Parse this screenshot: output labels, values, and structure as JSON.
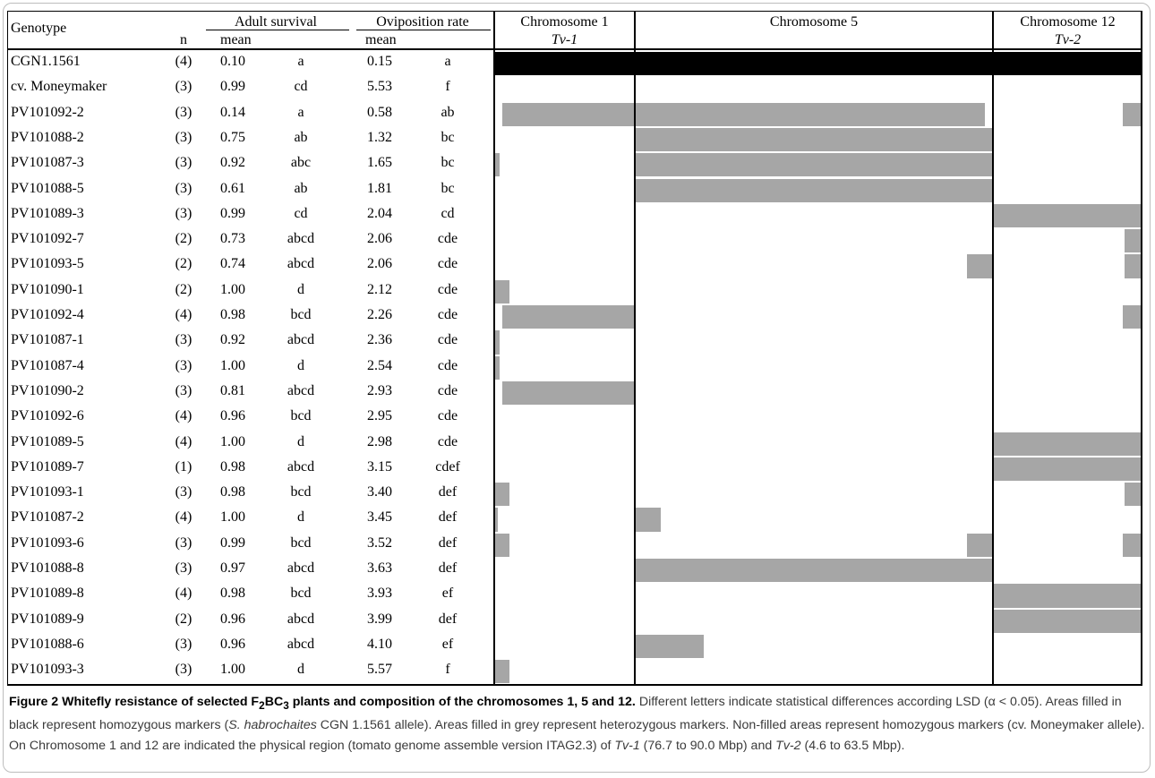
{
  "table": {
    "headers": {
      "genotype": "Genotype",
      "n": "n",
      "adult_survival": "Adult survival",
      "oviposition_rate": "Oviposition rate",
      "mean": "mean",
      "chromosomes": [
        {
          "name": "Chromosome 1",
          "region": "Tv-1"
        },
        {
          "name": "Chromosome 5",
          "region": ""
        },
        {
          "name": "Chromosome 12",
          "region": "Tv-2"
        }
      ]
    },
    "rows": [
      {
        "genotype": "CGN1.1561",
        "n": "(4)",
        "surv": "0.10",
        "surv_g": "a",
        "ovi": "0.15",
        "ovi_g": "a"
      },
      {
        "genotype": "cv. Moneymaker",
        "n": "(3)",
        "surv": "0.99",
        "surv_g": "cd",
        "ovi": "5.53",
        "ovi_g": "f"
      },
      {
        "genotype": "PV101092-2",
        "n": "(3)",
        "surv": "0.14",
        "surv_g": "a",
        "ovi": "0.58",
        "ovi_g": "ab"
      },
      {
        "genotype": "PV101088-2",
        "n": "(3)",
        "surv": "0.75",
        "surv_g": "ab",
        "ovi": "1.32",
        "ovi_g": "bc"
      },
      {
        "genotype": "PV101087-3",
        "n": "(3)",
        "surv": "0.92",
        "surv_g": "abc",
        "ovi": "1.65",
        "ovi_g": "bc"
      },
      {
        "genotype": "PV101088-5",
        "n": "(3)",
        "surv": "0.61",
        "surv_g": "ab",
        "ovi": "1.81",
        "ovi_g": "bc"
      },
      {
        "genotype": "PV101089-3",
        "n": "(3)",
        "surv": "0.99",
        "surv_g": "cd",
        "ovi": "2.04",
        "ovi_g": "cd"
      },
      {
        "genotype": "PV101092-7",
        "n": "(2)",
        "surv": "0.73",
        "surv_g": "abcd",
        "ovi": "2.06",
        "ovi_g": "cde"
      },
      {
        "genotype": "PV101093-5",
        "n": "(2)",
        "surv": "0.74",
        "surv_g": "abcd",
        "ovi": "2.06",
        "ovi_g": "cde"
      },
      {
        "genotype": "PV101090-1",
        "n": "(2)",
        "surv": "1.00",
        "surv_g": "d",
        "ovi": "2.12",
        "ovi_g": "cde"
      },
      {
        "genotype": "PV101092-4",
        "n": "(4)",
        "surv": "0.98",
        "surv_g": "bcd",
        "ovi": "2.26",
        "ovi_g": "cde"
      },
      {
        "genotype": "PV101087-1",
        "n": "(3)",
        "surv": "0.92",
        "surv_g": "abcd",
        "ovi": "2.36",
        "ovi_g": "cde"
      },
      {
        "genotype": "PV101087-4",
        "n": "(3)",
        "surv": "1.00",
        "surv_g": "d",
        "ovi": "2.54",
        "ovi_g": "cde"
      },
      {
        "genotype": "PV101090-2",
        "n": "(3)",
        "surv": "0.81",
        "surv_g": "abcd",
        "ovi": "2.93",
        "ovi_g": "cde"
      },
      {
        "genotype": "PV101092-6",
        "n": "(4)",
        "surv": "0.96",
        "surv_g": "bcd",
        "ovi": "2.95",
        "ovi_g": "cde"
      },
      {
        "genotype": "PV101089-5",
        "n": "(4)",
        "surv": "1.00",
        "surv_g": "d",
        "ovi": "2.98",
        "ovi_g": "cde"
      },
      {
        "genotype": "PV101089-7",
        "n": "(1)",
        "surv": "0.98",
        "surv_g": "abcd",
        "ovi": "3.15",
        "ovi_g": "cdef"
      },
      {
        "genotype": "PV101093-1",
        "n": "(3)",
        "surv": "0.98",
        "surv_g": "bcd",
        "ovi": "3.40",
        "ovi_g": "def"
      },
      {
        "genotype": "PV101087-2",
        "n": "(4)",
        "surv": "1.00",
        "surv_g": "d",
        "ovi": "3.45",
        "ovi_g": "def"
      },
      {
        "genotype": "PV101093-6",
        "n": "(3)",
        "surv": "0.99",
        "surv_g": "bcd",
        "ovi": "3.52",
        "ovi_g": "def"
      },
      {
        "genotype": "PV101088-8",
        "n": "(3)",
        "surv": "0.97",
        "surv_g": "abcd",
        "ovi": "3.63",
        "ovi_g": "def"
      },
      {
        "genotype": "PV101089-8",
        "n": "(4)",
        "surv": "0.98",
        "surv_g": "bcd",
        "ovi": "3.93",
        "ovi_g": "ef"
      },
      {
        "genotype": "PV101089-9",
        "n": "(2)",
        "surv": "0.96",
        "surv_g": "abcd",
        "ovi": "3.99",
        "ovi_g": "def"
      },
      {
        "genotype": "PV101088-6",
        "n": "(3)",
        "surv": "0.96",
        "surv_g": "abcd",
        "ovi": "4.10",
        "ovi_g": "ef"
      },
      {
        "genotype": "PV101093-3",
        "n": "(3)",
        "surv": "1.00",
        "surv_g": "d",
        "ovi": "5.57",
        "ovi_g": "f"
      }
    ]
  },
  "genotype_map": {
    "colors": {
      "homozygous_donor": "#000000",
      "heterozygous": "#a6a6a6"
    },
    "fills": [
      {
        "row": 0,
        "chrom": 0,
        "start": 0,
        "end": 1,
        "state": "homozygous_donor"
      },
      {
        "row": 0,
        "chrom": 1,
        "start": 0,
        "end": 1,
        "state": "homozygous_donor"
      },
      {
        "row": 0,
        "chrom": 2,
        "start": 0,
        "end": 1,
        "state": "homozygous_donor"
      },
      {
        "row": 2,
        "chrom": 0,
        "start": 0.05,
        "end": 1,
        "state": "heterozygous"
      },
      {
        "row": 2,
        "chrom": 1,
        "start": 0,
        "end": 0.98,
        "state": "heterozygous"
      },
      {
        "row": 2,
        "chrom": 2,
        "start": 0.88,
        "end": 1,
        "state": "heterozygous"
      },
      {
        "row": 3,
        "chrom": 1,
        "start": 0,
        "end": 1,
        "state": "heterozygous"
      },
      {
        "row": 4,
        "chrom": 0,
        "start": 0,
        "end": 0.03,
        "state": "heterozygous"
      },
      {
        "row": 4,
        "chrom": 1,
        "start": 0,
        "end": 1,
        "state": "heterozygous"
      },
      {
        "row": 5,
        "chrom": 1,
        "start": 0,
        "end": 1,
        "state": "heterozygous"
      },
      {
        "row": 6,
        "chrom": 2,
        "start": 0,
        "end": 1,
        "state": "heterozygous"
      },
      {
        "row": 7,
        "chrom": 2,
        "start": 0.89,
        "end": 1,
        "state": "heterozygous"
      },
      {
        "row": 8,
        "chrom": 1,
        "start": 0.93,
        "end": 1,
        "state": "heterozygous"
      },
      {
        "row": 8,
        "chrom": 2,
        "start": 0.89,
        "end": 1,
        "state": "heterozygous"
      },
      {
        "row": 9,
        "chrom": 0,
        "start": 0,
        "end": 0.1,
        "state": "heterozygous"
      },
      {
        "row": 10,
        "chrom": 0,
        "start": 0.05,
        "end": 1,
        "state": "heterozygous"
      },
      {
        "row": 10,
        "chrom": 2,
        "start": 0.88,
        "end": 1,
        "state": "heterozygous"
      },
      {
        "row": 11,
        "chrom": 0,
        "start": 0,
        "end": 0.03,
        "state": "heterozygous"
      },
      {
        "row": 12,
        "chrom": 0,
        "start": 0,
        "end": 0.03,
        "state": "heterozygous"
      },
      {
        "row": 13,
        "chrom": 0,
        "start": 0.05,
        "end": 1,
        "state": "heterozygous"
      },
      {
        "row": 15,
        "chrom": 2,
        "start": 0,
        "end": 1,
        "state": "heterozygous"
      },
      {
        "row": 16,
        "chrom": 2,
        "start": 0,
        "end": 1,
        "state": "heterozygous"
      },
      {
        "row": 17,
        "chrom": 0,
        "start": 0,
        "end": 0.1,
        "state": "heterozygous"
      },
      {
        "row": 17,
        "chrom": 2,
        "start": 0.89,
        "end": 1,
        "state": "heterozygous"
      },
      {
        "row": 18,
        "chrom": 0,
        "start": 0,
        "end": 0.02,
        "state": "heterozygous"
      },
      {
        "row": 18,
        "chrom": 1,
        "start": 0,
        "end": 0.07,
        "state": "heterozygous"
      },
      {
        "row": 19,
        "chrom": 0,
        "start": 0,
        "end": 0.1,
        "state": "heterozygous"
      },
      {
        "row": 19,
        "chrom": 1,
        "start": 0.93,
        "end": 1,
        "state": "heterozygous"
      },
      {
        "row": 19,
        "chrom": 2,
        "start": 0.88,
        "end": 1,
        "state": "heterozygous"
      },
      {
        "row": 20,
        "chrom": 1,
        "start": 0,
        "end": 1,
        "state": "heterozygous"
      },
      {
        "row": 21,
        "chrom": 2,
        "start": 0,
        "end": 1,
        "state": "heterozygous"
      },
      {
        "row": 22,
        "chrom": 2,
        "start": 0,
        "end": 1,
        "state": "heterozygous"
      },
      {
        "row": 23,
        "chrom": 1,
        "start": 0,
        "end": 0.19,
        "state": "heterozygous"
      },
      {
        "row": 24,
        "chrom": 0,
        "start": 0,
        "end": 0.1,
        "state": "heterozygous"
      }
    ]
  },
  "caption": {
    "title_a": "Figure 2 Whitefly resistance of selected F",
    "title_sub1": "2",
    "title_b": "BC",
    "title_sub2": "3",
    "title_c": " plants and composition of the chromosomes 1, 5 and 12.",
    "t1": " Different letters indicate statistical differences according LSD (α < 0.05). Areas filled in black represent homozygous markers (",
    "t1_i": "S. habrochaites",
    "t2": " CGN 1.1561 allele). Areas filled in grey represent heterozygous markers. Non-filled areas represent homozygous markers (cv. Moneymaker allele). On Chromosome 1 and 12 are indicated the physical region (tomato genome assemble version ITAG2.3) of ",
    "t2_i": "Tv-1",
    "t3": " (76.7 to 90.0 Mbp) and ",
    "t3_i": "Tv-2",
    "t4": " (4.6 to 63.5 Mbp)."
  }
}
